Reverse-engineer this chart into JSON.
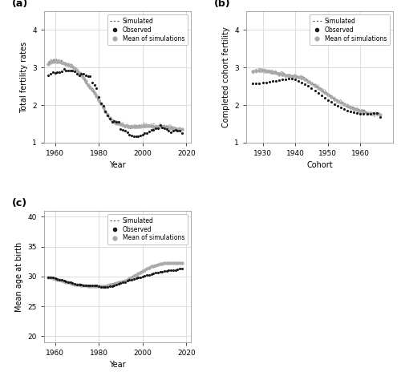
{
  "panel_a": {
    "title": "(a)",
    "xlabel": "Year",
    "ylabel": "Total fertility rates",
    "xlim": [
      1955,
      2022
    ],
    "ylim": [
      1.0,
      4.5
    ],
    "yticks": [
      1,
      2,
      3,
      4
    ],
    "xticks": [
      1960,
      1980,
      2000,
      2020
    ],
    "observed_x": [
      1957,
      1958,
      1959,
      1960,
      1961,
      1962,
      1963,
      1964,
      1965,
      1966,
      1967,
      1968,
      1969,
      1970,
      1971,
      1972,
      1973,
      1974,
      1975,
      1976,
      1977,
      1978,
      1979,
      1980,
      1981,
      1982,
      1983,
      1984,
      1985,
      1986,
      1987,
      1988,
      1989,
      1990,
      1991,
      1992,
      1993,
      1994,
      1995,
      1996,
      1997,
      1998,
      1999,
      2000,
      2001,
      2002,
      2003,
      2004,
      2005,
      2006,
      2007,
      2008,
      2009,
      2010,
      2011,
      2012,
      2013,
      2014,
      2015,
      2016,
      2017,
      2018
    ],
    "observed_y": [
      2.79,
      2.84,
      2.87,
      2.86,
      2.87,
      2.88,
      2.9,
      2.97,
      2.93,
      2.93,
      2.92,
      2.93,
      2.89,
      2.84,
      2.79,
      2.83,
      2.84,
      2.8,
      2.77,
      2.77,
      2.6,
      2.54,
      2.44,
      2.21,
      2.05,
      1.97,
      1.84,
      1.73,
      1.64,
      1.56,
      1.57,
      1.55,
      1.55,
      1.36,
      1.33,
      1.32,
      1.27,
      1.2,
      1.18,
      1.16,
      1.17,
      1.16,
      1.18,
      1.22,
      1.25,
      1.26,
      1.3,
      1.33,
      1.34,
      1.38,
      1.39,
      1.46,
      1.4,
      1.38,
      1.35,
      1.32,
      1.27,
      1.32,
      1.33,
      1.31,
      1.32,
      1.26
    ],
    "sim_mean_x": [
      1957,
      1958,
      1959,
      1960,
      1961,
      1962,
      1963,
      1964,
      1965,
      1966,
      1967,
      1968,
      1969,
      1970,
      1971,
      1972,
      1973,
      1974,
      1975,
      1976,
      1977,
      1978,
      1979,
      1980,
      1981,
      1982,
      1983,
      1984,
      1985,
      1986,
      1987,
      1988,
      1989,
      1990,
      1991,
      1992,
      1993,
      1994,
      1995,
      1996,
      1997,
      1998,
      1999,
      2000,
      2001,
      2002,
      2003,
      2004,
      2005,
      2006,
      2007,
      2008,
      2009,
      2010,
      2011,
      2012,
      2013,
      2014,
      2015,
      2016,
      2017,
      2018
    ],
    "sim_mean_y": [
      3.1,
      3.14,
      3.16,
      3.17,
      3.16,
      3.15,
      3.14,
      3.12,
      3.1,
      3.08,
      3.06,
      3.02,
      2.98,
      2.92,
      2.86,
      2.8,
      2.73,
      2.64,
      2.54,
      2.48,
      2.41,
      2.33,
      2.24,
      2.14,
      2.04,
      1.94,
      1.83,
      1.74,
      1.65,
      1.59,
      1.55,
      1.52,
      1.5,
      1.49,
      1.47,
      1.45,
      1.44,
      1.43,
      1.43,
      1.43,
      1.43,
      1.43,
      1.43,
      1.44,
      1.44,
      1.44,
      1.44,
      1.44,
      1.43,
      1.43,
      1.43,
      1.43,
      1.43,
      1.42,
      1.41,
      1.4,
      1.39,
      1.38,
      1.37,
      1.36,
      1.36,
      1.35
    ]
  },
  "panel_b": {
    "title": "(b)",
    "xlabel": "Cohort",
    "ylabel": "Completed cohort fertility",
    "xlim": [
      1925,
      1970
    ],
    "ylim": [
      1.0,
      4.5
    ],
    "yticks": [
      1,
      2,
      3,
      4
    ],
    "xticks": [
      1930,
      1940,
      1950,
      1960
    ],
    "observed_x": [
      1927,
      1928,
      1929,
      1930,
      1931,
      1932,
      1933,
      1934,
      1935,
      1936,
      1937,
      1938,
      1939,
      1940,
      1941,
      1942,
      1943,
      1944,
      1945,
      1946,
      1947,
      1948,
      1949,
      1950,
      1951,
      1952,
      1953,
      1954,
      1955,
      1956,
      1957,
      1958,
      1959,
      1960,
      1961,
      1962,
      1963,
      1964,
      1965,
      1966
    ],
    "observed_y": [
      2.57,
      2.57,
      2.58,
      2.59,
      2.6,
      2.62,
      2.64,
      2.65,
      2.67,
      2.68,
      2.69,
      2.7,
      2.7,
      2.68,
      2.65,
      2.61,
      2.56,
      2.51,
      2.45,
      2.39,
      2.33,
      2.26,
      2.2,
      2.14,
      2.08,
      2.03,
      1.98,
      1.94,
      1.9,
      1.86,
      1.83,
      1.8,
      1.78,
      1.77,
      1.76,
      1.76,
      1.77,
      1.78,
      1.79,
      1.67
    ],
    "sim_mean_x": [
      1927,
      1928,
      1929,
      1930,
      1931,
      1932,
      1933,
      1934,
      1935,
      1936,
      1937,
      1938,
      1939,
      1940,
      1941,
      1942,
      1943,
      1944,
      1945,
      1946,
      1947,
      1948,
      1949,
      1950,
      1951,
      1952,
      1953,
      1954,
      1955,
      1956,
      1957,
      1958,
      1959,
      1960,
      1961,
      1962,
      1963,
      1964,
      1965,
      1966
    ],
    "sim_mean_y": [
      2.9,
      2.91,
      2.91,
      2.91,
      2.9,
      2.89,
      2.87,
      2.86,
      2.84,
      2.82,
      2.8,
      2.79,
      2.78,
      2.77,
      2.75,
      2.72,
      2.68,
      2.63,
      2.58,
      2.52,
      2.46,
      2.4,
      2.34,
      2.28,
      2.22,
      2.16,
      2.11,
      2.06,
      2.02,
      1.97,
      1.93,
      1.9,
      1.87,
      1.84,
      1.81,
      1.79,
      1.78,
      1.77,
      1.76,
      1.75
    ]
  },
  "panel_c": {
    "title": "(c)",
    "xlabel": "Year",
    "ylabel": "Mean age at birth",
    "xlim": [
      1955,
      2022
    ],
    "ylim": [
      19,
      41
    ],
    "yticks": [
      20,
      25,
      30,
      35,
      40
    ],
    "xticks": [
      1960,
      1980,
      2000,
      2020
    ],
    "observed_x": [
      1957,
      1958,
      1959,
      1960,
      1961,
      1962,
      1963,
      1964,
      1965,
      1966,
      1967,
      1968,
      1969,
      1970,
      1971,
      1972,
      1973,
      1974,
      1975,
      1976,
      1977,
      1978,
      1979,
      1980,
      1981,
      1982,
      1983,
      1984,
      1985,
      1986,
      1987,
      1988,
      1989,
      1990,
      1991,
      1992,
      1993,
      1994,
      1995,
      1996,
      1997,
      1998,
      1999,
      2000,
      2001,
      2002,
      2003,
      2004,
      2005,
      2006,
      2007,
      2008,
      2009,
      2010,
      2011,
      2012,
      2013,
      2014,
      2015,
      2016,
      2017,
      2018
    ],
    "observed_y": [
      29.9,
      29.9,
      29.8,
      29.7,
      29.6,
      29.5,
      29.4,
      29.3,
      29.2,
      29.1,
      29.0,
      28.9,
      28.8,
      28.7,
      28.7,
      28.6,
      28.5,
      28.5,
      28.5,
      28.5,
      28.5,
      28.5,
      28.5,
      28.4,
      28.3,
      28.3,
      28.3,
      28.3,
      28.4,
      28.4,
      28.5,
      28.6,
      28.8,
      28.9,
      29.0,
      29.1,
      29.3,
      29.4,
      29.5,
      29.6,
      29.7,
      29.8,
      29.9,
      30.0,
      30.1,
      30.2,
      30.3,
      30.4,
      30.5,
      30.6,
      30.7,
      30.8,
      30.8,
      30.9,
      30.9,
      31.0,
      31.0,
      31.1,
      31.1,
      31.2,
      31.3,
      31.3
    ],
    "sim_mean_x": [
      1957,
      1958,
      1959,
      1960,
      1961,
      1962,
      1963,
      1964,
      1965,
      1966,
      1967,
      1968,
      1969,
      1970,
      1971,
      1972,
      1973,
      1974,
      1975,
      1976,
      1977,
      1978,
      1979,
      1980,
      1981,
      1982,
      1983,
      1984,
      1985,
      1986,
      1987,
      1988,
      1989,
      1990,
      1991,
      1992,
      1993,
      1994,
      1995,
      1996,
      1997,
      1998,
      1999,
      2000,
      2001,
      2002,
      2003,
      2004,
      2005,
      2006,
      2007,
      2008,
      2009,
      2010,
      2011,
      2012,
      2013,
      2014,
      2015,
      2016,
      2017,
      2018
    ],
    "sim_mean_y": [
      29.9,
      29.8,
      29.7,
      29.6,
      29.5,
      29.4,
      29.3,
      29.2,
      29.1,
      29.0,
      28.9,
      28.8,
      28.7,
      28.6,
      28.6,
      28.5,
      28.5,
      28.5,
      28.4,
      28.4,
      28.4,
      28.4,
      28.4,
      28.4,
      28.4,
      28.4,
      28.4,
      28.5,
      28.6,
      28.7,
      28.8,
      28.9,
      29.0,
      29.1,
      29.2,
      29.3,
      29.5,
      29.7,
      29.9,
      30.1,
      30.3,
      30.5,
      30.7,
      30.9,
      31.1,
      31.3,
      31.5,
      31.7,
      31.8,
      31.9,
      32.0,
      32.1,
      32.2,
      32.3,
      32.3,
      32.3,
      32.3,
      32.3,
      32.3,
      32.3,
      32.3,
      32.3
    ]
  },
  "observed_color": "#1a1a1a",
  "sim_mean_color": "#aaaaaa",
  "bg_color": "#ffffff",
  "grid_color": "#d8d8d8",
  "legend_items": [
    "Simulated",
    "Observed",
    "Mean of simulations"
  ]
}
